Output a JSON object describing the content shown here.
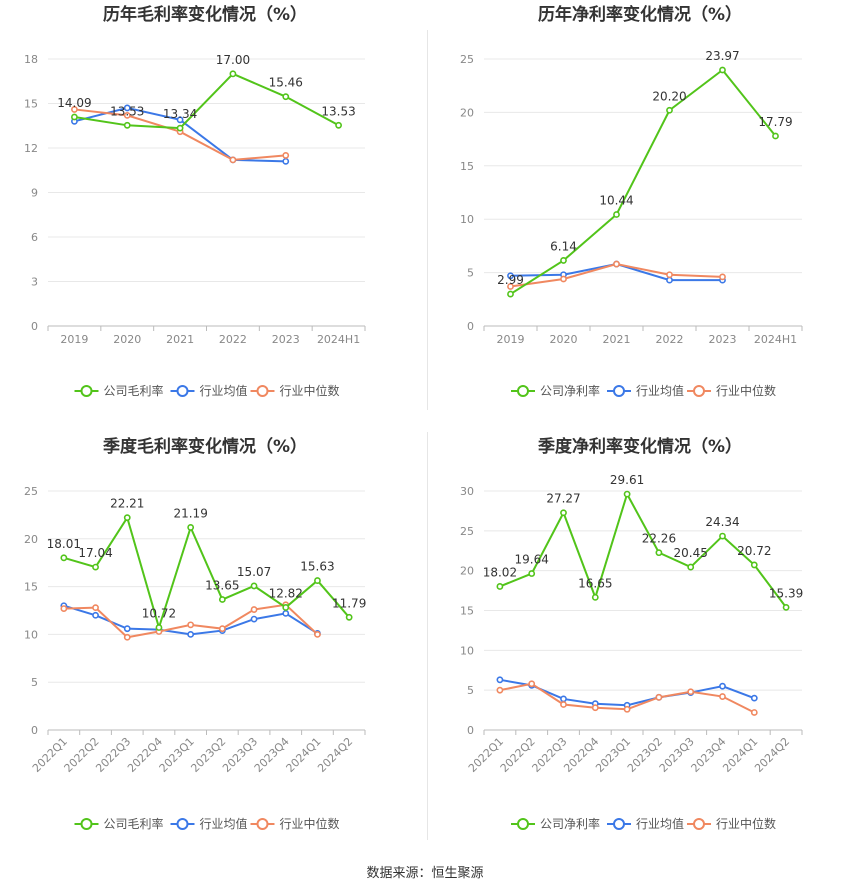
{
  "colors": {
    "company": "#52c41a",
    "industry_avg": "#3b78e7",
    "industry_median": "#f08860",
    "grid": "#e8e8e8",
    "axis_text": "#888888",
    "label_text": "#333333"
  },
  "legend_labels_gross": [
    "公司毛利率",
    "行业均值",
    "行业中位数"
  ],
  "legend_labels_net": [
    "公司净利率",
    "行业均值",
    "行业中位数"
  ],
  "source": "数据来源：恒生聚源",
  "chart_data": [
    {
      "type": "line",
      "title": "历年毛利率变化情况（%）",
      "categories": [
        "2019",
        "2020",
        "2021",
        "2022",
        "2023",
        "2024H1"
      ],
      "ylim": [
        0,
        18
      ],
      "yticks": [
        0,
        3,
        6,
        9,
        12,
        15,
        18
      ],
      "grid": true,
      "legend_position": "bottom",
      "series": [
        {
          "name": "公司毛利率",
          "values": [
            14.09,
            13.53,
            13.34,
            17.0,
            15.46,
            13.53
          ],
          "labels": [
            "14.09",
            "13.53",
            "13.34",
            "17.00",
            "15.46",
            "13.53"
          ]
        },
        {
          "name": "行业均值",
          "values": [
            13.8,
            14.7,
            13.9,
            11.2,
            11.1,
            null
          ]
        },
        {
          "name": "行业中位数",
          "values": [
            14.6,
            14.2,
            13.1,
            11.2,
            11.5,
            null
          ]
        }
      ]
    },
    {
      "type": "line",
      "title": "历年净利率变化情况（%）",
      "categories": [
        "2019",
        "2020",
        "2021",
        "2022",
        "2023",
        "2024H1"
      ],
      "ylim": [
        0,
        25
      ],
      "yticks": [
        0,
        5,
        10,
        15,
        20,
        25
      ],
      "grid": true,
      "legend_position": "bottom",
      "series": [
        {
          "name": "公司净利率",
          "values": [
            2.99,
            6.14,
            10.44,
            20.2,
            23.97,
            17.79
          ],
          "labels": [
            "2.99",
            "6.14",
            "10.44",
            "20.20",
            "23.97",
            "17.79"
          ]
        },
        {
          "name": "行业均值",
          "values": [
            4.7,
            4.8,
            5.8,
            4.3,
            4.3,
            null
          ]
        },
        {
          "name": "行业中位数",
          "values": [
            3.7,
            4.4,
            5.8,
            4.8,
            4.6,
            null
          ]
        }
      ]
    },
    {
      "type": "line",
      "title": "季度毛利率变化情况（%）",
      "categories": [
        "2022Q1",
        "2022Q2",
        "2022Q3",
        "2022Q4",
        "2023Q1",
        "2023Q2",
        "2023Q3",
        "2023Q4",
        "2024Q1",
        "2024Q2"
      ],
      "ylim": [
        0,
        25
      ],
      "yticks": [
        0,
        5,
        10,
        15,
        20,
        25
      ],
      "grid": true,
      "legend_position": "bottom",
      "series": [
        {
          "name": "公司毛利率",
          "values": [
            18.01,
            17.04,
            22.21,
            10.72,
            21.19,
            13.65,
            15.07,
            12.82,
            15.63,
            11.79
          ],
          "labels": [
            "18.01",
            "17.04",
            "22.21",
            "10.72",
            "21.19",
            "13.65",
            "15.07",
            "12.82",
            "15.63",
            "11.79"
          ]
        },
        {
          "name": "行业均值",
          "values": [
            13.0,
            12.0,
            10.6,
            10.5,
            10.0,
            10.4,
            11.6,
            12.2,
            10.1,
            null
          ]
        },
        {
          "name": "行业中位数",
          "values": [
            12.7,
            12.8,
            9.7,
            10.3,
            11.0,
            10.6,
            12.6,
            13.1,
            10.0,
            null
          ]
        }
      ]
    },
    {
      "type": "line",
      "title": "季度净利率变化情况（%）",
      "categories": [
        "2022Q1",
        "2022Q2",
        "2022Q3",
        "2022Q4",
        "2023Q1",
        "2023Q2",
        "2023Q3",
        "2023Q4",
        "2024Q1",
        "2024Q2"
      ],
      "ylim": [
        0,
        30
      ],
      "yticks": [
        0,
        5,
        10,
        15,
        20,
        25,
        30
      ],
      "grid": true,
      "legend_position": "bottom",
      "series": [
        {
          "name": "公司净利率",
          "values": [
            18.02,
            19.64,
            27.27,
            16.65,
            29.61,
            22.26,
            20.45,
            24.34,
            20.72,
            15.39
          ],
          "labels": [
            "18.02",
            "19.64",
            "27.27",
            "16.65",
            "29.61",
            "22.26",
            "20.45",
            "24.34",
            "20.72",
            "15.39"
          ]
        },
        {
          "name": "行业均值",
          "values": [
            6.3,
            5.6,
            3.9,
            3.3,
            3.1,
            4.1,
            4.7,
            5.5,
            4.0,
            null
          ]
        },
        {
          "name": "行业中位数",
          "values": [
            5.0,
            5.8,
            3.2,
            2.8,
            2.6,
            4.1,
            4.8,
            4.2,
            2.2,
            null
          ]
        }
      ]
    }
  ]
}
